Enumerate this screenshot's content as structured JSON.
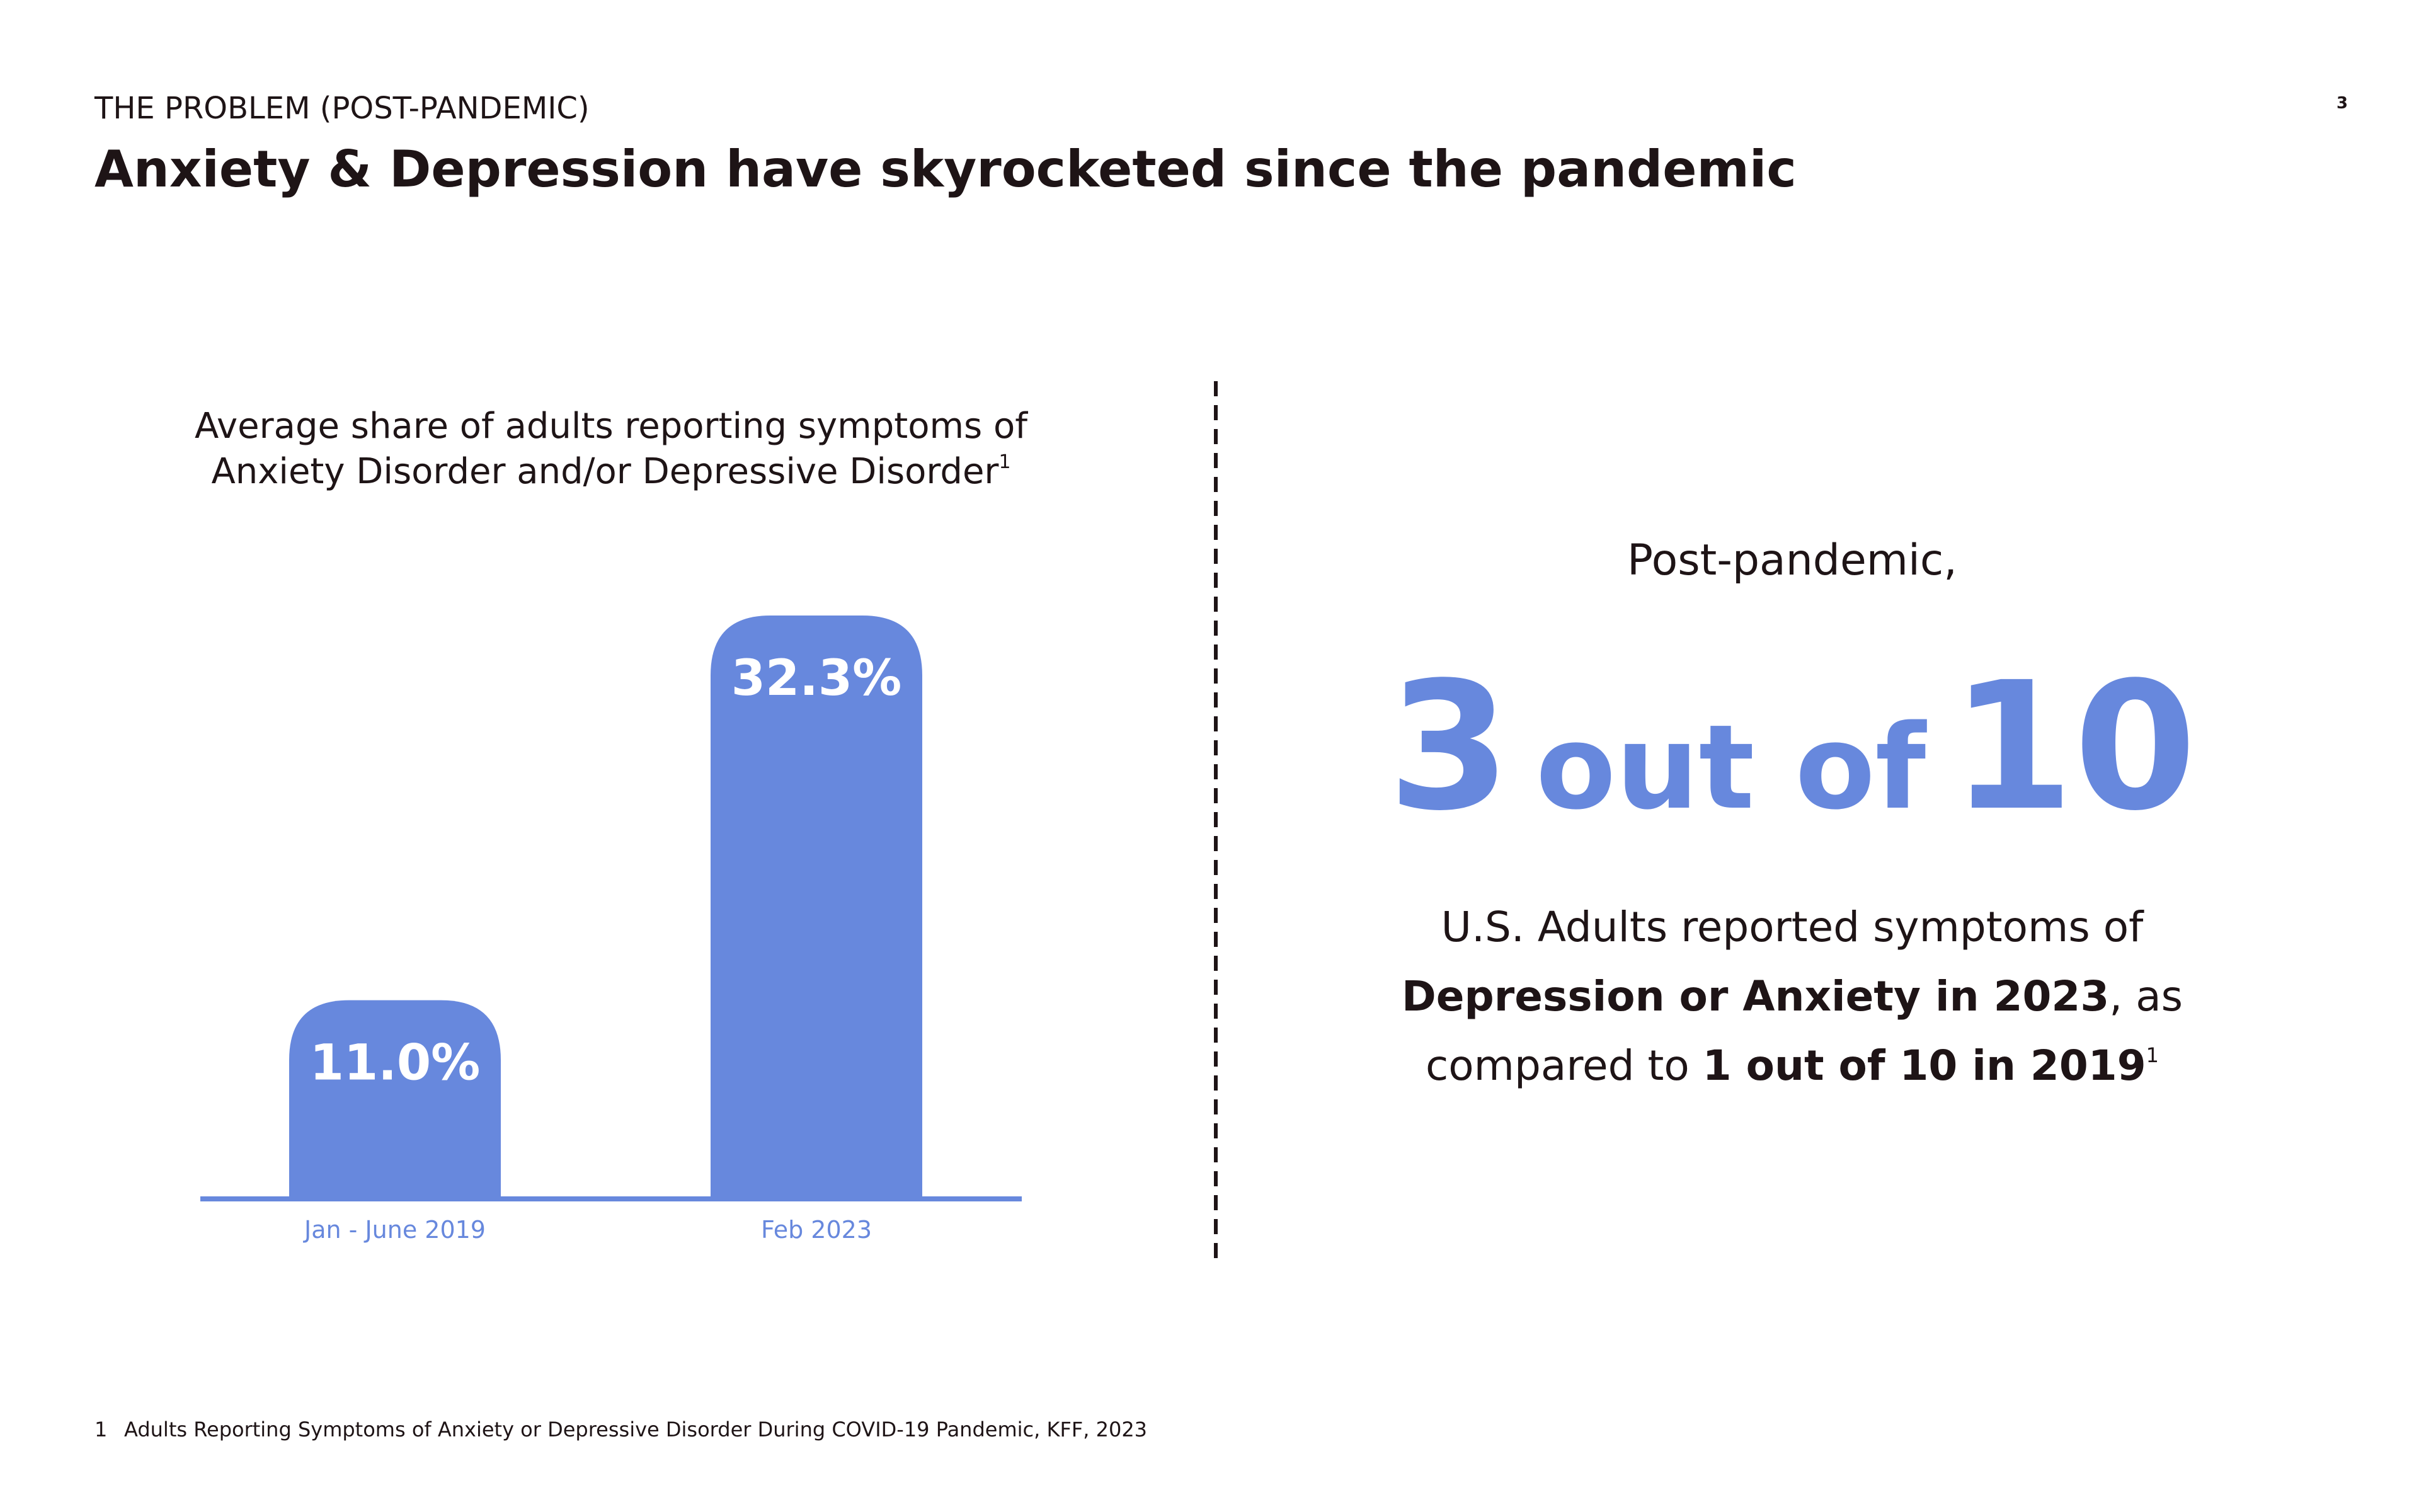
{
  "page_number": "3",
  "header": {
    "kicker": "THE PROBLEM (POST-PANDEMIC)",
    "title": "Anxiety & Depression have skyrocketed since the pandemic"
  },
  "chart_data": {
    "type": "bar",
    "title_lines": [
      "Average share of adults reporting symptoms of",
      "Anxiety Disorder and/or Depressive Disorder"
    ],
    "title_footnote": "1",
    "categories": [
      "Jan - June 2019",
      "Feb 2023"
    ],
    "values": [
      11.0,
      32.3
    ],
    "value_labels": [
      "11.0%",
      "32.3%"
    ],
    "color": "#6788dd"
  },
  "callout": {
    "lead": "Post-pandemic,",
    "stat": {
      "number": "3",
      "middle": "out of",
      "total": "10"
    },
    "body": [
      [
        {
          "text": "U.S. Adults reported symptoms of",
          "bold": false
        }
      ],
      [
        {
          "text": "Depression or Anxiety in 2023",
          "bold": true
        },
        {
          "text": ", as",
          "bold": false
        }
      ],
      [
        {
          "text": "compared to ",
          "bold": false
        },
        {
          "text": "1 out of 10 in 2019",
          "bold": true
        }
      ]
    ],
    "footnote_ref": "1"
  },
  "footnote": {
    "marker": "1",
    "text": "Adults Reporting Symptoms of Anxiety or Depressive Disorder During COVID-19 Pandemic, KFF, 2023"
  }
}
